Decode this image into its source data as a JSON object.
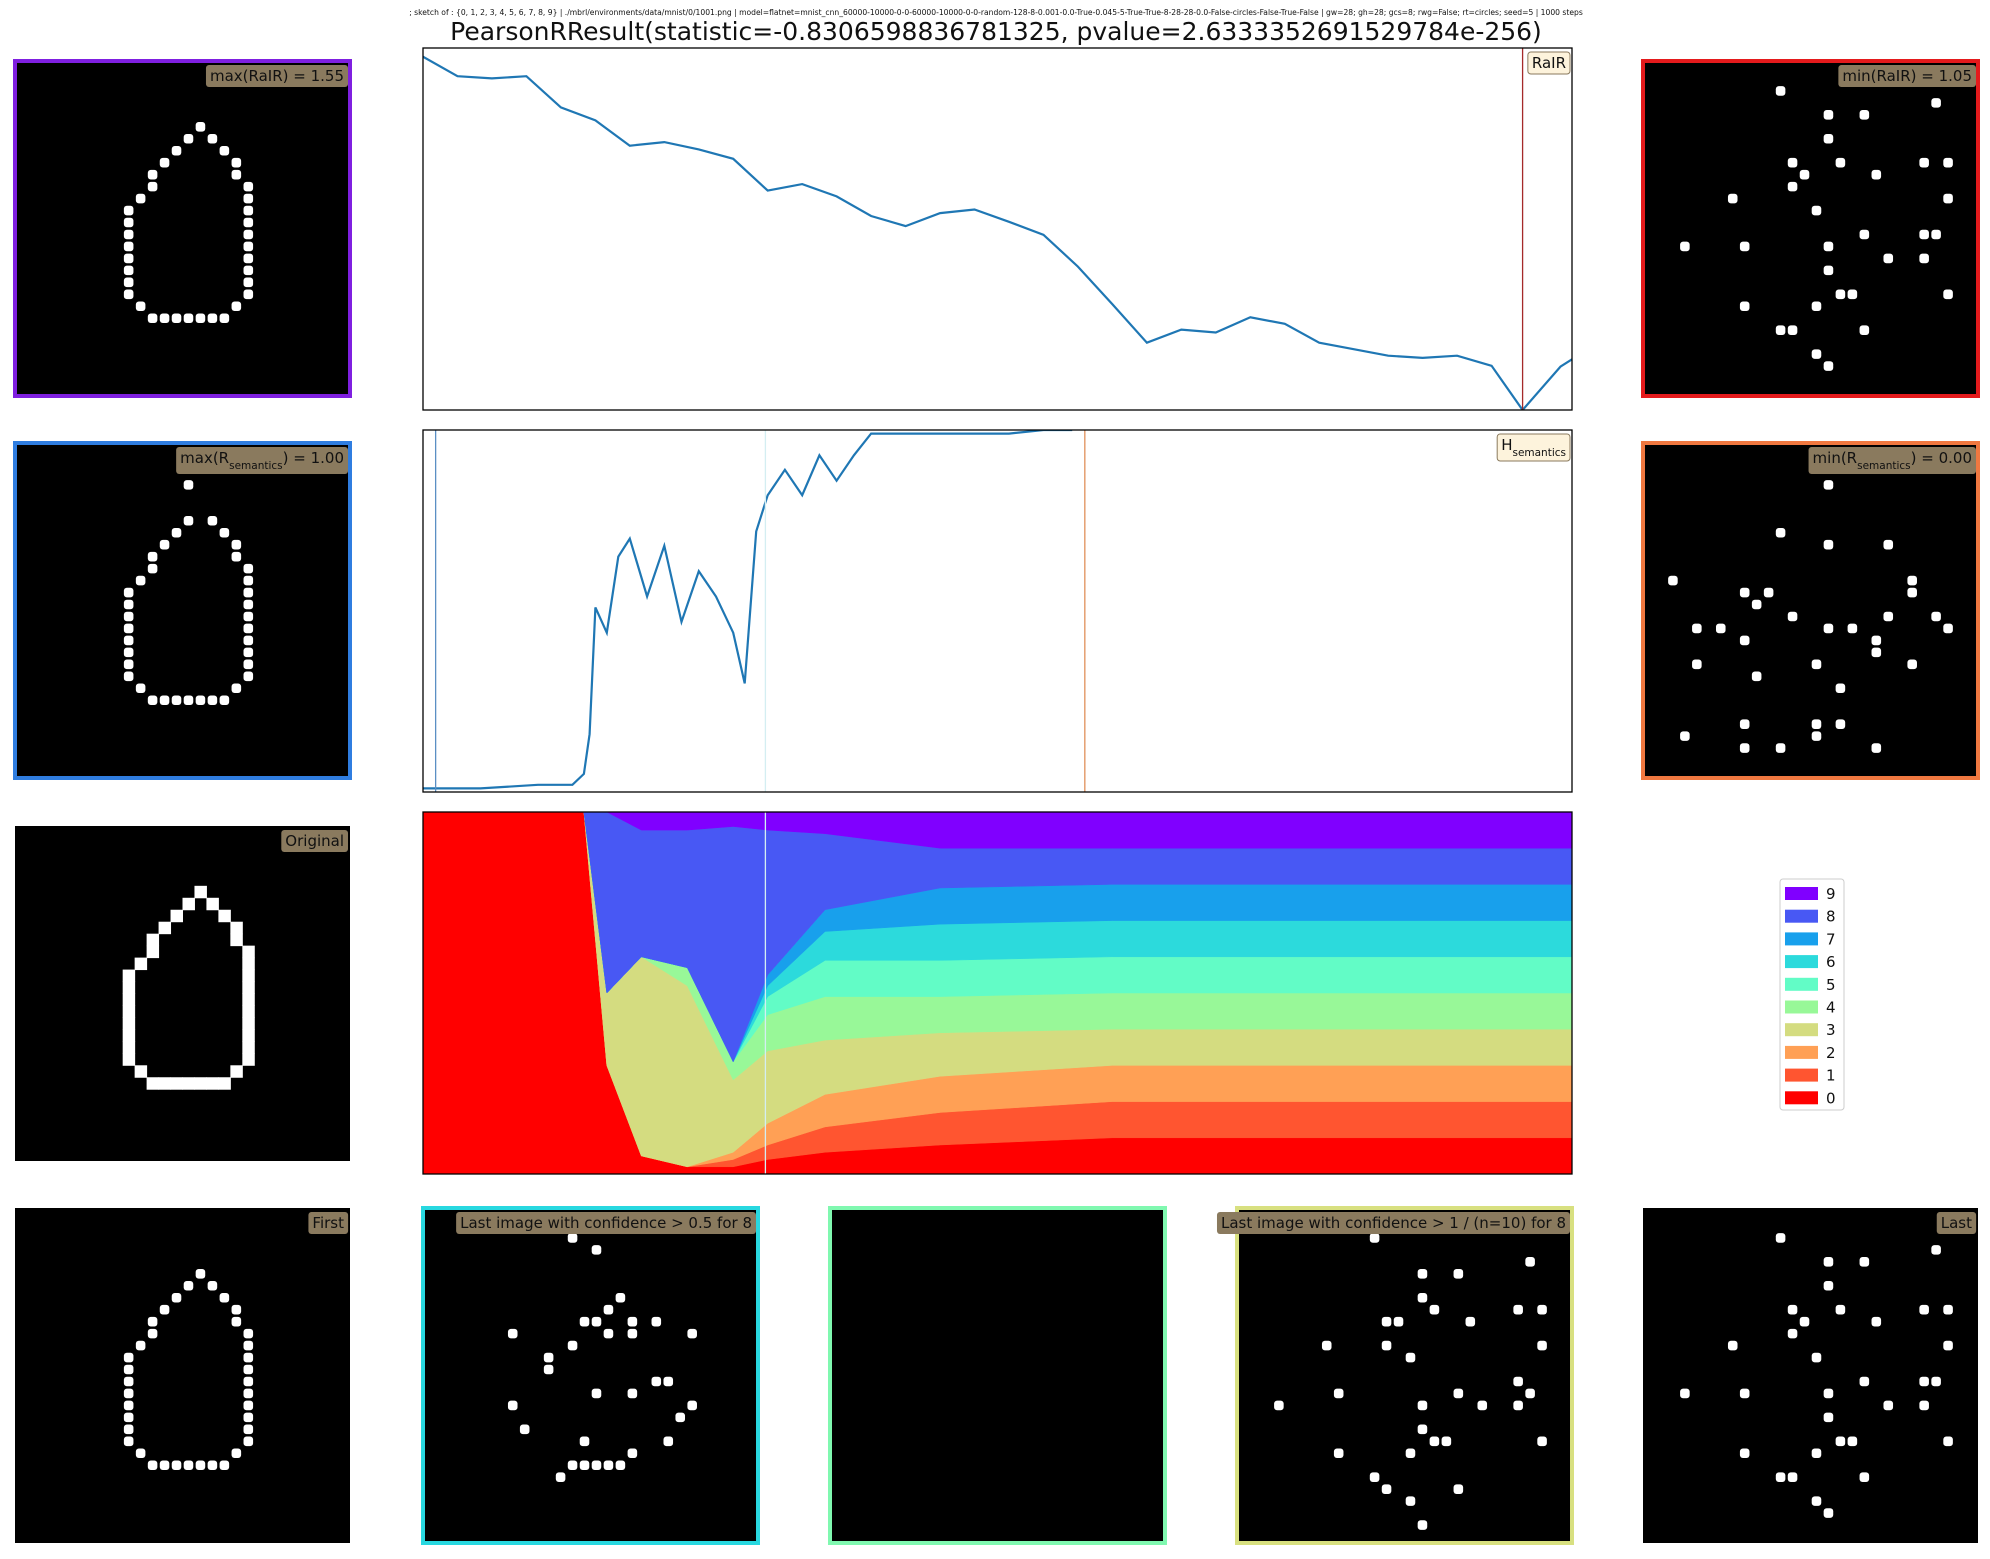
{
  "header": {
    "subtitle": "; sketch of : {0, 1, 2, 3, 4, 5, 6, 7, 8, 9} | ./mbrl/environments/data/mnist/0/1001.png | model=flatnet=mnist_cnn_60000-10000-0-0-60000-10000-0-0-random-128-8-0.001-0.0-True-0.045-5-True-True-8-28-28-0.0-False-circles-False-True-False | gw=28; gh=28; gcs=8; rwg=False; rt=circles; seed=5 | 1000 steps",
    "title": "PearsonRResult(statistic=-0.8306598836781325, pvalue=2.6333352691529784e-256)"
  },
  "chart_data": [
    {
      "type": "line",
      "label": "RaIR",
      "color": "#1f77b4",
      "xlim": [
        0,
        1000
      ],
      "ylim": [
        1.05,
        1.55
      ],
      "x": [
        0,
        30,
        60,
        90,
        120,
        150,
        180,
        210,
        240,
        270,
        300,
        330,
        360,
        390,
        420,
        450,
        480,
        510,
        540,
        570,
        600,
        630,
        660,
        690,
        720,
        750,
        780,
        810,
        840,
        870,
        900,
        930,
        957,
        990,
        1000
      ],
      "values": [
        1.538,
        1.511,
        1.508,
        1.511,
        1.468,
        1.45,
        1.415,
        1.42,
        1.41,
        1.397,
        1.353,
        1.362,
        1.345,
        1.318,
        1.304,
        1.322,
        1.327,
        1.31,
        1.292,
        1.248,
        1.196,
        1.143,
        1.161,
        1.157,
        1.178,
        1.169,
        1.143,
        1.134,
        1.125,
        1.122,
        1.125,
        1.111,
        1.05,
        1.11,
        1.12
      ],
      "vlines": [
        {
          "x": 957,
          "color": "#a52a2a"
        }
      ]
    },
    {
      "type": "line",
      "label": [
        "H",
        "semantics"
      ],
      "color": "#1f77b4",
      "xlim": [
        0,
        1000
      ],
      "ylim": [
        0,
        1
      ],
      "x": [
        0,
        50,
        100,
        130,
        140,
        145,
        150,
        160,
        170,
        180,
        195,
        210,
        225,
        240,
        255,
        270,
        280,
        290,
        300,
        315,
        330,
        345,
        360,
        375,
        390,
        420,
        450,
        480,
        510,
        540,
        565
      ],
      "values": [
        0.01,
        0.01,
        0.02,
        0.02,
        0.05,
        0.16,
        0.51,
        0.44,
        0.65,
        0.7,
        0.54,
        0.68,
        0.47,
        0.61,
        0.54,
        0.44,
        0.3,
        0.72,
        0.82,
        0.89,
        0.82,
        0.93,
        0.86,
        0.93,
        0.99,
        0.99,
        0.99,
        0.99,
        0.99,
        1.0,
        1.0
      ],
      "vlines": [
        {
          "x": 11,
          "color": "#5b8fc4"
        },
        {
          "x": 298,
          "color": "#d4eef2"
        },
        {
          "x": 576,
          "color": "#e0905a"
        }
      ]
    },
    {
      "type": "stacked_area",
      "xlim": [
        0,
        1000
      ],
      "ylim": [
        0,
        1
      ],
      "x": [
        0,
        140,
        160,
        190,
        230,
        270,
        300,
        350,
        450,
        600,
        1000
      ],
      "legend": "right",
      "series": [
        {
          "name": "0",
          "color": "#ff0000",
          "values": [
            1,
            1,
            0.3,
            0.05,
            0.02,
            0.02,
            0.04,
            0.06,
            0.08,
            0.1,
            0.1
          ]
        },
        {
          "name": "1",
          "color": "#ff5530",
          "values": [
            0,
            0,
            0,
            0,
            0,
            0.02,
            0.04,
            0.07,
            0.09,
            0.1,
            0.1
          ]
        },
        {
          "name": "2",
          "color": "#ffa055",
          "values": [
            0,
            0,
            0,
            0,
            0,
            0.02,
            0.06,
            0.09,
            0.1,
            0.1,
            0.1
          ]
        },
        {
          "name": "3",
          "color": "#d4dc80",
          "values": [
            0,
            0,
            0.2,
            0.55,
            0.5,
            0.2,
            0.2,
            0.15,
            0.12,
            0.1,
            0.1
          ]
        },
        {
          "name": "4",
          "color": "#98f898",
          "values": [
            0,
            0,
            0,
            0,
            0.05,
            0.05,
            0.1,
            0.12,
            0.1,
            0.1,
            0.1
          ]
        },
        {
          "name": "5",
          "color": "#62fcc6",
          "values": [
            0,
            0,
            0,
            0,
            0,
            0,
            0.05,
            0.1,
            0.1,
            0.1,
            0.1
          ]
        },
        {
          "name": "6",
          "color": "#2cdadc",
          "values": [
            0,
            0,
            0,
            0,
            0,
            0,
            0.03,
            0.08,
            0.1,
            0.1,
            0.1
          ]
        },
        {
          "name": "7",
          "color": "#18a0ec",
          "values": [
            0,
            0,
            0,
            0,
            0,
            0,
            0.03,
            0.06,
            0.1,
            0.1,
            0.1
          ]
        },
        {
          "name": "8",
          "color": "#4858f4",
          "values": [
            0,
            0,
            0.5,
            0.35,
            0.38,
            0.65,
            0.4,
            0.21,
            0.11,
            0.1,
            0.1
          ]
        },
        {
          "name": "9",
          "color": "#8000ff",
          "values": [
            0,
            0,
            0,
            0.05,
            0.05,
            0.04,
            0.05,
            0.06,
            0.1,
            0.1,
            0.1
          ]
        }
      ],
      "vlines": [
        {
          "x": 298,
          "color": "#d4eef2"
        }
      ]
    }
  ],
  "panels": [
    {
      "label": "max(RaIR) = 1.55",
      "border": "#7f1fe0"
    },
    {
      "label": [
        "max(R",
        "semantics",
        ") = 1.00"
      ],
      "border": "#2f7de0"
    },
    {
      "label": "Original"
    },
    {
      "label": "First"
    },
    {
      "label": "min(RaIR) = 1.05",
      "border": "#e41a1c"
    },
    {
      "label": [
        "min(R",
        "semantics",
        ") = 0.00"
      ],
      "border": "#f07840"
    },
    {
      "label": "Last image with confidence > 0.5 for 8",
      "border": "#28d8e0"
    },
    {
      "border": "#80f8b0"
    },
    {
      "label": "Last image with confidence > 1 / (n=10) for 8",
      "border": "#d8e080"
    },
    {
      "label": "Last"
    }
  ]
}
